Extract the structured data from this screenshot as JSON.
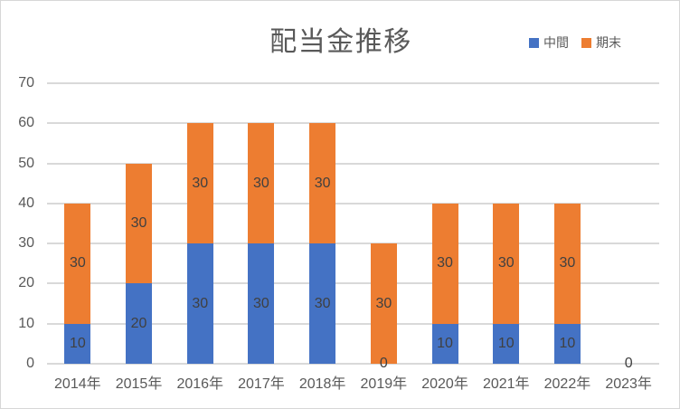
{
  "chart_data": {
    "type": "bar",
    "stacked": true,
    "title": "配当金推移",
    "categories": [
      "2014年",
      "2015年",
      "2016年",
      "2017年",
      "2018年",
      "2019年",
      "2020年",
      "2021年",
      "2022年",
      "2023年"
    ],
    "series": [
      {
        "name": "中間",
        "color": "#4472C4",
        "values": [
          10,
          20,
          30,
          30,
          30,
          0,
          10,
          10,
          10,
          0
        ]
      },
      {
        "name": "期末",
        "color": "#ED7D31",
        "values": [
          30,
          30,
          30,
          30,
          30,
          30,
          30,
          30,
          30,
          0
        ]
      }
    ],
    "totals": [
      40,
      50,
      60,
      60,
      60,
      30,
      40,
      40,
      40,
      0
    ],
    "xlabel": "",
    "ylabel": "",
    "ylim": [
      0,
      70
    ],
    "yticks": [
      0,
      10,
      20,
      30,
      40,
      50,
      60,
      70
    ],
    "grid": true,
    "data_labels": true,
    "legend_position": "top-right",
    "colors": {
      "interim": "#4472C4",
      "yearend": "#ED7D31",
      "gridline": "#D9D9D9",
      "axis_text": "#595959",
      "title_text": "#595959",
      "legend_text": "#595959",
      "data_label_text": "#404040",
      "background": "#FFFFFF"
    }
  }
}
